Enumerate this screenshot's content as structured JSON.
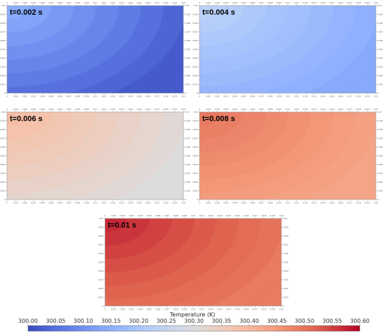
{
  "chart_data": {
    "type": "heatmap",
    "panels": [
      {
        "title": "t=0.002 s",
        "field_min": 300.02,
        "field_max": 300.16
      },
      {
        "title": "t=0.004 s",
        "field_min": 300.14,
        "field_max": 300.24
      },
      {
        "title": "t=0.006 s",
        "field_min": 300.3,
        "field_max": 300.4
      },
      {
        "title": "t=0.008 s",
        "field_min": 300.43,
        "field_max": 300.5
      },
      {
        "title": "t=0.01 s",
        "field_min": 300.49,
        "field_max": 300.58
      }
    ],
    "x_ticks": [
      "0",
      "0.001",
      "0.002",
      "0.003",
      "0.004",
      "0.005",
      "0.006",
      "0.007",
      "0.008",
      "0.009",
      "0.01",
      "0.011",
      "0.012",
      "0.013",
      "0.014",
      "0.015",
      "0.016",
      "0.017",
      "0.018",
      "0.019",
      "0.02"
    ],
    "y_ticks": [
      "0",
      "0.001",
      "0.002",
      "0.003",
      "0.004",
      "0.005",
      "0.006",
      "0.007",
      "0.008",
      "0.009",
      "0.01"
    ],
    "colorbar": {
      "title": "Temperature (K)",
      "min": 300.0,
      "max": 300.6,
      "ticks": [
        "300.00",
        "300.05",
        "300.10",
        "300.15",
        "300.20",
        "300.25",
        "300.30",
        "300.35",
        "300.40",
        "300.45",
        "300.50",
        "300.55",
        "300.60"
      ]
    },
    "colors": {
      "cold": "#3b4cc0",
      "mid": "#dddcdc",
      "hot": "#b40426"
    }
  }
}
